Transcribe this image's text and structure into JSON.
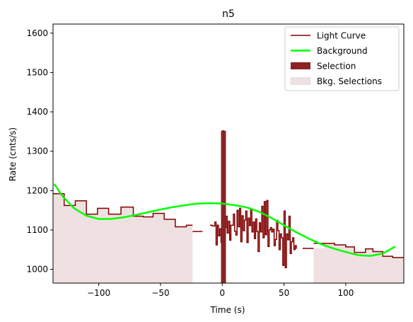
{
  "chart_data": {
    "type": "step-line",
    "title": "n5",
    "xlabel": "Time (s)",
    "ylabel": "Rate (cnts/s)",
    "xlim": [
      -137,
      147
    ],
    "ylim": [
      965,
      1623
    ],
    "x_ticks": [
      -100,
      -50,
      0,
      50,
      100
    ],
    "x_tick_labels": [
      "−100",
      "−50",
      "0",
      "50",
      "100"
    ],
    "y_ticks": [
      1000,
      1100,
      1200,
      1300,
      1400,
      1500,
      1600
    ],
    "y_tick_labels": [
      "1000",
      "1100",
      "1200",
      "1300",
      "1400",
      "1500",
      "1600"
    ],
    "legend": {
      "position": "upper right",
      "entries": [
        "Light Curve",
        "Background",
        "Selection",
        "Bkg. Selections"
      ]
    },
    "colors": {
      "light_curve": "#800000",
      "background": "#00ff00",
      "selection": "#8b2323",
      "bkg_selection": "#efe1e1"
    },
    "light_curve": {
      "name": "Light Curve",
      "segments": [
        [
          [
            -137,
            1192
          ],
          [
            -128,
            1162
          ],
          [
            -119,
            1174
          ],
          [
            -110,
            1140
          ],
          [
            -101,
            1155
          ],
          [
            -92,
            1140
          ],
          [
            -82,
            1158
          ],
          [
            -72,
            1135
          ],
          [
            -64,
            1133
          ],
          [
            -56,
            1142
          ],
          [
            -47,
            1127
          ],
          [
            -38,
            1108
          ],
          [
            -29,
            1112
          ],
          [
            -24,
            1112
          ]
        ],
        [
          [
            -24,
            1096
          ],
          [
            -16,
            1096
          ]
        ],
        [
          [
            -10,
            1112
          ],
          [
            -8,
            1110
          ],
          [
            -6,
            1120
          ],
          [
            -5,
            1062
          ],
          [
            -4,
            1112
          ],
          [
            -3,
            1085
          ],
          [
            -2,
            1103
          ],
          [
            -1,
            1068
          ],
          [
            0,
            1106
          ],
          [
            0.5,
            1352
          ],
          [
            1,
            1138
          ],
          [
            2,
            1106
          ],
          [
            3,
            1135
          ],
          [
            4,
            1092
          ],
          [
            5,
            1122
          ],
          [
            6,
            1074
          ],
          [
            7,
            1112
          ],
          [
            9,
            1140
          ],
          [
            10,
            1097
          ],
          [
            11,
            1087
          ],
          [
            12,
            1150
          ],
          [
            13,
            1108
          ],
          [
            14,
            1155
          ],
          [
            15,
            1070
          ],
          [
            16,
            1136
          ],
          [
            17,
            1098
          ],
          [
            18,
            1125
          ],
          [
            19,
            1148
          ],
          [
            20,
            1068
          ],
          [
            21,
            1130
          ],
          [
            22,
            1111
          ],
          [
            23,
            1152
          ],
          [
            24,
            1095
          ],
          [
            25,
            1120
          ],
          [
            26,
            1078
          ],
          [
            27,
            1128
          ],
          [
            28,
            1096
          ],
          [
            29,
            1045
          ],
          [
            30,
            1118
          ],
          [
            31,
            1095
          ],
          [
            32,
            1160
          ],
          [
            33,
            1080
          ],
          [
            34,
            1172
          ],
          [
            35,
            1088
          ],
          [
            36,
            1175
          ],
          [
            37,
            1058
          ],
          [
            38,
            1100
          ],
          [
            39,
            1106
          ],
          [
            40,
            1095
          ],
          [
            41,
            1102
          ],
          [
            42,
            1060
          ],
          [
            43,
            1076
          ],
          [
            44,
            1124
          ],
          [
            45,
            1098
          ],
          [
            46,
            1050
          ],
          [
            47,
            1090
          ],
          [
            48,
            1080
          ],
          [
            49,
            1010
          ],
          [
            50,
            1148
          ],
          [
            51,
            1004
          ],
          [
            52,
            1090
          ],
          [
            53,
            1075
          ],
          [
            54,
            1135
          ],
          [
            55,
            1040
          ],
          [
            56,
            1070
          ],
          [
            57,
            1080
          ],
          [
            58,
            1050
          ],
          [
            59,
            1060
          ],
          [
            60,
            1052
          ]
        ],
        [
          [
            65,
            1053
          ],
          [
            74,
            1053
          ]
        ],
        [
          [
            74,
            1066
          ],
          [
            82,
            1066
          ],
          [
            91,
            1062
          ],
          [
            100,
            1057
          ],
          [
            107,
            1043
          ],
          [
            116,
            1052
          ],
          [
            122,
            1045
          ],
          [
            130,
            1033
          ],
          [
            138,
            1030
          ],
          [
            147,
            1030
          ]
        ]
      ]
    },
    "background": {
      "name": "Background",
      "x": [
        -136,
        -130,
        -120,
        -110,
        -100,
        -90,
        -80,
        -70,
        -60,
        -50,
        -40,
        -30,
        -20,
        -10,
        0,
        10,
        20,
        30,
        40,
        50,
        60,
        70,
        80,
        90,
        100,
        110,
        120,
        130,
        140
      ],
      "y": [
        1217,
        1188,
        1155,
        1136,
        1128,
        1128,
        1132,
        1138,
        1145,
        1152,
        1158,
        1163,
        1167,
        1168,
        1167,
        1163,
        1157,
        1146,
        1130,
        1112,
        1094,
        1078,
        1064,
        1053,
        1044,
        1036,
        1034,
        1040,
        1058
      ]
    },
    "selection": {
      "name": "Selection",
      "x_range": [
        -1,
        3
      ],
      "height": 1352
    },
    "bkg_selections": {
      "name": "Bkg. Selections",
      "ranges": [
        [
          -137,
          -24
        ],
        [
          74,
          147
        ]
      ]
    }
  }
}
